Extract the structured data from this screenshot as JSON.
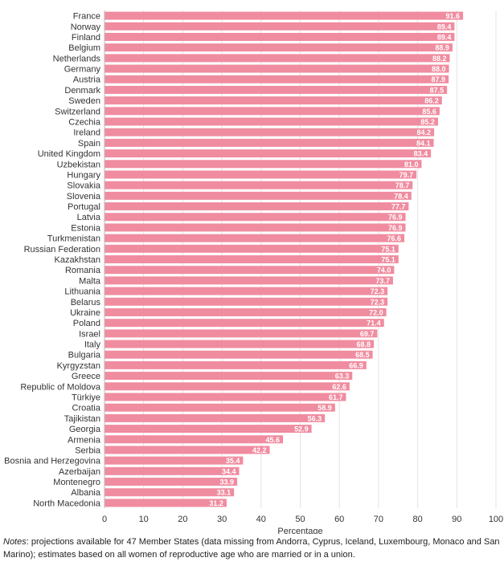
{
  "chart_data": {
    "type": "bar",
    "orientation": "horizontal",
    "categories": [
      "France",
      "Norway",
      "Finland",
      "Belgium",
      "Netherlands",
      "Germany",
      "Austria",
      "Denmark",
      "Sweden",
      "Switzerland",
      "Czechia",
      "Ireland",
      "Spain",
      "United Kingdom",
      "Uzbekistan",
      "Hungary",
      "Slovakia",
      "Slovenia",
      "Portugal",
      "Latvia",
      "Estonia",
      "Turkmenistan",
      "Russian Federation",
      "Kazakhstan",
      "Romania",
      "Malta",
      "Lithuania",
      "Belarus",
      "Ukraine",
      "Poland",
      "Israel",
      "Italy",
      "Bulgaria",
      "Kyrgyzstan",
      "Greece",
      "Republic of Moldova",
      "Türkiye",
      "Croatia",
      "Tajikistan",
      "Georgia",
      "Armenia",
      "Serbia",
      "Bosnia and Herzegovina",
      "Azerbaijan",
      "Montenegro",
      "Albania",
      "North Macedonia"
    ],
    "values": [
      91.6,
      89.4,
      89.4,
      88.9,
      88.2,
      88.0,
      87.9,
      87.5,
      86.2,
      85.6,
      85.2,
      84.2,
      84.1,
      83.4,
      81.0,
      79.7,
      78.7,
      78.4,
      77.7,
      76.9,
      76.9,
      76.6,
      75.1,
      75.1,
      74.0,
      73.7,
      72.3,
      72.3,
      72.0,
      71.4,
      69.7,
      68.8,
      68.5,
      66.9,
      63.3,
      62.6,
      61.7,
      58.9,
      56.3,
      52.9,
      45.6,
      42.2,
      35.4,
      34.4,
      33.9,
      33.1,
      31.2
    ],
    "value_labels": [
      "91.6",
      "89.4",
      "89.4",
      "88.9",
      "88.2",
      "88.0",
      "87.9",
      "87.5",
      "86.2",
      "85.6",
      "85.2",
      "84.2",
      "84.1",
      "83.4",
      "81.0",
      "79.7",
      "78.7",
      "78.4",
      "77.7",
      "76.9",
      "76.9",
      "76.6",
      "75.1",
      "75.1",
      "74.0",
      "73.7",
      "72.3",
      "72.3",
      "72.0",
      "71.4",
      "69.7",
      "68.8",
      "68.5",
      "66.9",
      "63.3",
      "62.6",
      "61.7",
      "58.9",
      "56.3",
      "52.9",
      "45.6",
      "42.2",
      "35.4",
      "34.4",
      "33.9",
      "33.1",
      "31.2"
    ],
    "xlabel": "Percentage",
    "xlim": [
      0,
      100
    ],
    "xticks": [
      "0",
      "10",
      "20",
      "30",
      "40",
      "50",
      "60",
      "70",
      "80",
      "90",
      "100"
    ],
    "grid": true,
    "bar_color": "#F08CA0",
    "value_label_color": "#FFFFFF"
  },
  "notes": {
    "label": "Notes",
    "text": ":  projections available for 47 Member States (data missing from Andorra, Cyprus, Iceland, Luxembourg, Monaco and San Marino); estimates based on all women of reproductive age who are married or in a union."
  }
}
